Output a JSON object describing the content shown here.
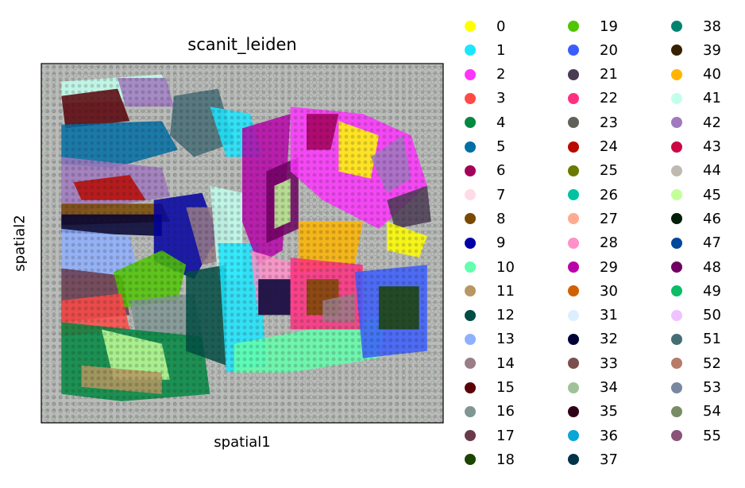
{
  "chart_data": {
    "type": "scatter",
    "title": "scanit_leiden",
    "xlabel": "spatial1",
    "ylabel": "spatial2",
    "xticks": [],
    "yticks": [],
    "background": "gray tissue histology image with array spot grid",
    "legend_position": "right, 3 columns",
    "categories": [
      "0",
      "1",
      "2",
      "3",
      "4",
      "5",
      "6",
      "7",
      "8",
      "9",
      "10",
      "11",
      "12",
      "13",
      "14",
      "15",
      "16",
      "17",
      "18",
      "19",
      "20",
      "21",
      "22",
      "23",
      "24",
      "25",
      "26",
      "27",
      "28",
      "29",
      "30",
      "31",
      "32",
      "33",
      "34",
      "35",
      "36",
      "37",
      "38",
      "39",
      "40",
      "41",
      "42",
      "43",
      "44",
      "45",
      "46",
      "47",
      "48",
      "49",
      "50",
      "51",
      "52",
      "53",
      "54",
      "55"
    ],
    "colors": [
      "#ffff00",
      "#1ce6ff",
      "#ff34ff",
      "#ff4a46",
      "#008941",
      "#006fa6",
      "#a30059",
      "#ffdbe5",
      "#7a4900",
      "#0000a6",
      "#63ffac",
      "#b79762",
      "#004d43",
      "#8fb0ff",
      "#997d87",
      "#5a0007",
      "#809693",
      "#6a3a4c",
      "#1b4400",
      "#4fc601",
      "#3b5dff",
      "#4a3b53",
      "#ff2f80",
      "#61615a",
      "#ba0900",
      "#6b7900",
      "#00c2a0",
      "#ffaa92",
      "#ff90c9",
      "#b903aa",
      "#d16100",
      "#ddefff",
      "#000035",
      "#7b4f4b",
      "#a1c299",
      "#300018",
      "#0aa6d8",
      "#013349",
      "#00846f",
      "#372101",
      "#ffb500",
      "#c2ffed",
      "#a079bf",
      "#cc0744",
      "#c0b9b2",
      "#c2ff99",
      "#001e09",
      "#00489c",
      "#6f0062",
      "#0cbd66",
      "#eec3ff",
      "#456d75",
      "#b77b68",
      "#7a87a1",
      "#788d66",
      "#885578"
    ],
    "regions": [
      {
        "cluster": "41",
        "points": [
          [
            0.05,
            0.95
          ],
          [
            0.3,
            0.97
          ],
          [
            0.32,
            0.9
          ],
          [
            0.05,
            0.89
          ]
        ]
      },
      {
        "cluster": "15",
        "points": [
          [
            0.05,
            0.91
          ],
          [
            0.19,
            0.93
          ],
          [
            0.22,
            0.84
          ],
          [
            0.06,
            0.82
          ]
        ]
      },
      {
        "cluster": "42",
        "points": [
          [
            0.19,
            0.96
          ],
          [
            0.31,
            0.96
          ],
          [
            0.33,
            0.88
          ],
          [
            0.21,
            0.88
          ]
        ]
      },
      {
        "cluster": "5",
        "points": [
          [
            0.05,
            0.83
          ],
          [
            0.3,
            0.84
          ],
          [
            0.34,
            0.76
          ],
          [
            0.18,
            0.71
          ],
          [
            0.05,
            0.72
          ]
        ]
      },
      {
        "cluster": "51",
        "points": [
          [
            0.33,
            0.91
          ],
          [
            0.44,
            0.93
          ],
          [
            0.48,
            0.78
          ],
          [
            0.38,
            0.74
          ],
          [
            0.32,
            0.8
          ]
        ]
      },
      {
        "cluster": "1",
        "points": [
          [
            0.42,
            0.88
          ],
          [
            0.52,
            0.86
          ],
          [
            0.55,
            0.74
          ],
          [
            0.46,
            0.74
          ]
        ]
      },
      {
        "cluster": "42",
        "points": [
          [
            0.05,
            0.74
          ],
          [
            0.3,
            0.71
          ],
          [
            0.32,
            0.63
          ],
          [
            0.05,
            0.58
          ]
        ]
      },
      {
        "cluster": "24",
        "points": [
          [
            0.08,
            0.67
          ],
          [
            0.22,
            0.69
          ],
          [
            0.26,
            0.62
          ],
          [
            0.1,
            0.62
          ]
        ]
      },
      {
        "cluster": "8",
        "points": [
          [
            0.05,
            0.61
          ],
          [
            0.3,
            0.61
          ],
          [
            0.32,
            0.56
          ],
          [
            0.05,
            0.55
          ]
        ]
      },
      {
        "cluster": "32",
        "points": [
          [
            0.05,
            0.58
          ],
          [
            0.3,
            0.58
          ],
          [
            0.3,
            0.52
          ],
          [
            0.05,
            0.53
          ]
        ]
      },
      {
        "cluster": "9",
        "points": [
          [
            0.28,
            0.62
          ],
          [
            0.4,
            0.64
          ],
          [
            0.44,
            0.52
          ],
          [
            0.38,
            0.4
          ],
          [
            0.28,
            0.45
          ]
        ]
      },
      {
        "cluster": "14",
        "points": [
          [
            0.36,
            0.6
          ],
          [
            0.46,
            0.6
          ],
          [
            0.48,
            0.46
          ],
          [
            0.4,
            0.44
          ]
        ]
      },
      {
        "cluster": "41",
        "points": [
          [
            0.42,
            0.66
          ],
          [
            0.5,
            0.64
          ],
          [
            0.5,
            0.4
          ],
          [
            0.44,
            0.4
          ]
        ]
      },
      {
        "cluster": "13",
        "points": [
          [
            0.05,
            0.54
          ],
          [
            0.22,
            0.52
          ],
          [
            0.24,
            0.42
          ],
          [
            0.05,
            0.4
          ]
        ]
      },
      {
        "cluster": "17",
        "points": [
          [
            0.05,
            0.43
          ],
          [
            0.2,
            0.41
          ],
          [
            0.22,
            0.3
          ],
          [
            0.05,
            0.28
          ]
        ]
      },
      {
        "cluster": "19",
        "points": [
          [
            0.18,
            0.42
          ],
          [
            0.3,
            0.48
          ],
          [
            0.36,
            0.44
          ],
          [
            0.34,
            0.34
          ],
          [
            0.2,
            0.32
          ]
        ]
      },
      {
        "cluster": "3",
        "points": [
          [
            0.05,
            0.34
          ],
          [
            0.2,
            0.36
          ],
          [
            0.22,
            0.26
          ],
          [
            0.05,
            0.24
          ]
        ]
      },
      {
        "cluster": "16",
        "points": [
          [
            0.22,
            0.34
          ],
          [
            0.38,
            0.36
          ],
          [
            0.4,
            0.24
          ],
          [
            0.24,
            0.22
          ]
        ]
      },
      {
        "cluster": "4",
        "points": [
          [
            0.05,
            0.28
          ],
          [
            0.4,
            0.24
          ],
          [
            0.42,
            0.08
          ],
          [
            0.2,
            0.06
          ],
          [
            0.05,
            0.08
          ]
        ]
      },
      {
        "cluster": "45",
        "points": [
          [
            0.15,
            0.26
          ],
          [
            0.3,
            0.22
          ],
          [
            0.32,
            0.12
          ],
          [
            0.18,
            0.12
          ]
        ]
      },
      {
        "cluster": "11",
        "points": [
          [
            0.1,
            0.16
          ],
          [
            0.3,
            0.14
          ],
          [
            0.3,
            0.08
          ],
          [
            0.1,
            0.1
          ]
        ]
      },
      {
        "cluster": "12",
        "points": [
          [
            0.36,
            0.42
          ],
          [
            0.46,
            0.44
          ],
          [
            0.46,
            0.16
          ],
          [
            0.36,
            0.2
          ]
        ]
      },
      {
        "cluster": "1",
        "points": [
          [
            0.44,
            0.5
          ],
          [
            0.54,
            0.5
          ],
          [
            0.56,
            0.16
          ],
          [
            0.46,
            0.14
          ]
        ]
      },
      {
        "cluster": "10",
        "points": [
          [
            0.48,
            0.22
          ],
          [
            0.86,
            0.3
          ],
          [
            0.84,
            0.18
          ],
          [
            0.62,
            0.14
          ],
          [
            0.48,
            0.14
          ]
        ]
      },
      {
        "cluster": "29",
        "points": [
          [
            0.5,
            0.82
          ],
          [
            0.62,
            0.86
          ],
          [
            0.6,
            0.48
          ],
          [
            0.54,
            0.44
          ],
          [
            0.5,
            0.56
          ]
        ]
      },
      {
        "cluster": "48",
        "points": [
          [
            0.56,
            0.7
          ],
          [
            0.64,
            0.74
          ],
          [
            0.64,
            0.54
          ],
          [
            0.56,
            0.5
          ]
        ]
      },
      {
        "cluster": "45",
        "points": [
          [
            0.58,
            0.66
          ],
          [
            0.62,
            0.68
          ],
          [
            0.62,
            0.56
          ],
          [
            0.58,
            0.54
          ]
        ]
      },
      {
        "cluster": "2",
        "points": [
          [
            0.62,
            0.88
          ],
          [
            0.8,
            0.86
          ],
          [
            0.92,
            0.8
          ],
          [
            0.96,
            0.66
          ],
          [
            0.84,
            0.54
          ],
          [
            0.7,
            0.62
          ],
          [
            0.62,
            0.7
          ]
        ]
      },
      {
        "cluster": "6",
        "points": [
          [
            0.66,
            0.86
          ],
          [
            0.74,
            0.86
          ],
          [
            0.72,
            0.76
          ],
          [
            0.66,
            0.76
          ]
        ]
      },
      {
        "cluster": "0",
        "points": [
          [
            0.74,
            0.84
          ],
          [
            0.84,
            0.8
          ],
          [
            0.82,
            0.68
          ],
          [
            0.74,
            0.7
          ]
        ]
      },
      {
        "cluster": "42",
        "points": [
          [
            0.82,
            0.74
          ],
          [
            0.9,
            0.8
          ],
          [
            0.92,
            0.68
          ],
          [
            0.86,
            0.64
          ]
        ]
      },
      {
        "cluster": "21",
        "points": [
          [
            0.86,
            0.62
          ],
          [
            0.96,
            0.66
          ],
          [
            0.97,
            0.56
          ],
          [
            0.88,
            0.54
          ]
        ]
      },
      {
        "cluster": "0",
        "points": [
          [
            0.86,
            0.56
          ],
          [
            0.96,
            0.52
          ],
          [
            0.94,
            0.46
          ],
          [
            0.86,
            0.48
          ]
        ]
      },
      {
        "cluster": "40",
        "points": [
          [
            0.64,
            0.56
          ],
          [
            0.8,
            0.56
          ],
          [
            0.78,
            0.44
          ],
          [
            0.64,
            0.42
          ]
        ]
      },
      {
        "cluster": "28",
        "points": [
          [
            0.52,
            0.48
          ],
          [
            0.64,
            0.44
          ],
          [
            0.64,
            0.3
          ],
          [
            0.54,
            0.3
          ]
        ]
      },
      {
        "cluster": "32",
        "points": [
          [
            0.54,
            0.4
          ],
          [
            0.62,
            0.4
          ],
          [
            0.62,
            0.3
          ],
          [
            0.54,
            0.3
          ]
        ]
      },
      {
        "cluster": "22",
        "points": [
          [
            0.62,
            0.46
          ],
          [
            0.8,
            0.44
          ],
          [
            0.8,
            0.26
          ],
          [
            0.62,
            0.26
          ]
        ]
      },
      {
        "cluster": "8",
        "points": [
          [
            0.66,
            0.4
          ],
          [
            0.74,
            0.4
          ],
          [
            0.74,
            0.3
          ],
          [
            0.66,
            0.3
          ]
        ]
      },
      {
        "cluster": "20",
        "points": [
          [
            0.78,
            0.42
          ],
          [
            0.96,
            0.44
          ],
          [
            0.96,
            0.2
          ],
          [
            0.8,
            0.18
          ]
        ]
      },
      {
        "cluster": "18",
        "points": [
          [
            0.84,
            0.38
          ],
          [
            0.94,
            0.38
          ],
          [
            0.94,
            0.26
          ],
          [
            0.84,
            0.26
          ]
        ]
      },
      {
        "cluster": "14",
        "points": [
          [
            0.7,
            0.34
          ],
          [
            0.78,
            0.36
          ],
          [
            0.78,
            0.28
          ],
          [
            0.7,
            0.28
          ]
        ]
      }
    ]
  }
}
